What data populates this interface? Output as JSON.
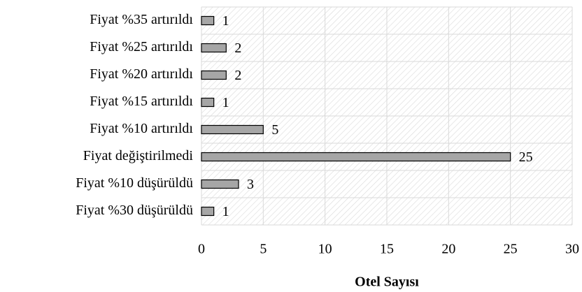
{
  "chart_data": {
    "type": "barh",
    "categories": [
      "Fiyat %35 artırıldı",
      "Fiyat %25 artırıldı",
      "Fiyat %20 artırıldı",
      "Fiyat %15 artırıldı",
      "Fiyat %10 artırıldı",
      "Fiyat değiştirilmedi",
      "Fiyat %10 düşürüldü",
      "Fiyat %30 düşürüldü"
    ],
    "values": [
      1,
      2,
      2,
      1,
      5,
      25,
      3,
      1
    ],
    "color": "#a6a6a6",
    "xlabel": "Otel Sayısı",
    "xlim": [
      0,
      30
    ],
    "xticks": [
      0,
      5,
      10,
      15,
      20,
      25,
      30
    ],
    "grid": true
  }
}
